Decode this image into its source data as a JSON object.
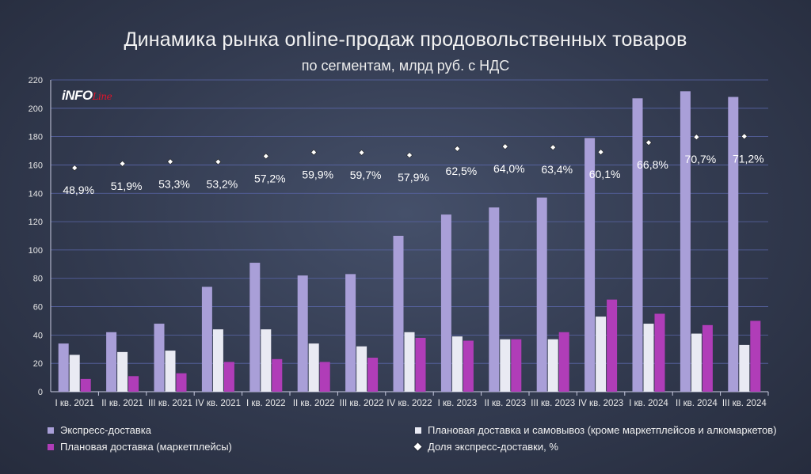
{
  "title": "Динамика рынка online-продаж продовольственных товаров",
  "subtitle": "по сегментам, млрд руб. с НДС",
  "logo": {
    "main": "iNFO",
    "accent": "Line"
  },
  "colors": {
    "express": "#a99fd8",
    "planned_pickup": "#e9eaf3",
    "marketplaces": "#b03db8",
    "share_marker": "#ffffff",
    "grid": "#5a66a8"
  },
  "chart_data": {
    "type": "bar",
    "categories": [
      "I кв. 2021",
      "II кв. 2021",
      "III кв. 2021",
      "IV кв. 2021",
      "I кв. 2022",
      "II кв. 2022",
      "III кв. 2022",
      "IV кв. 2022",
      "I кв. 2023",
      "II кв. 2023",
      "III кв. 2023",
      "IV кв. 2023",
      "I кв. 2024",
      "II кв. 2024",
      "III кв. 2024"
    ],
    "ylim": [
      0,
      220
    ],
    "yticks": [
      0,
      20,
      40,
      60,
      80,
      100,
      120,
      140,
      160,
      180,
      200,
      220
    ],
    "grid": true,
    "legend_position": "bottom",
    "series": [
      {
        "name": "Экспресс-доставка",
        "values": [
          34,
          42,
          48,
          74,
          91,
          82,
          83,
          110,
          125,
          130,
          137,
          179,
          207,
          212,
          208
        ]
      },
      {
        "name": "Плановая доставка и самовывоз (кроме маркетплейсов и алкомаркетов)",
        "values": [
          26,
          28,
          29,
          44,
          44,
          34,
          32,
          42,
          39,
          37,
          37,
          53,
          48,
          41,
          33
        ]
      },
      {
        "name": "Плановая доставка (маркетплейсы)",
        "values": [
          9,
          11,
          13,
          21,
          23,
          21,
          24,
          38,
          36,
          37,
          42,
          65,
          55,
          47,
          50
        ]
      }
    ],
    "share_series": {
      "name": "Доля экспресс-доставки, %",
      "values": [
        48.9,
        51.9,
        53.3,
        53.2,
        57.2,
        59.9,
        59.7,
        57.9,
        62.5,
        64.0,
        63.4,
        60.1,
        66.8,
        70.7,
        71.2
      ],
      "labels": [
        "48,9%",
        "51,9%",
        "53,3%",
        "53,2%",
        "57,2%",
        "59,9%",
        "59,7%",
        "57,9%",
        "62,5%",
        "64,0%",
        "63,4%",
        "60,1%",
        "66,8%",
        "70,7%",
        "71,2%"
      ]
    }
  }
}
